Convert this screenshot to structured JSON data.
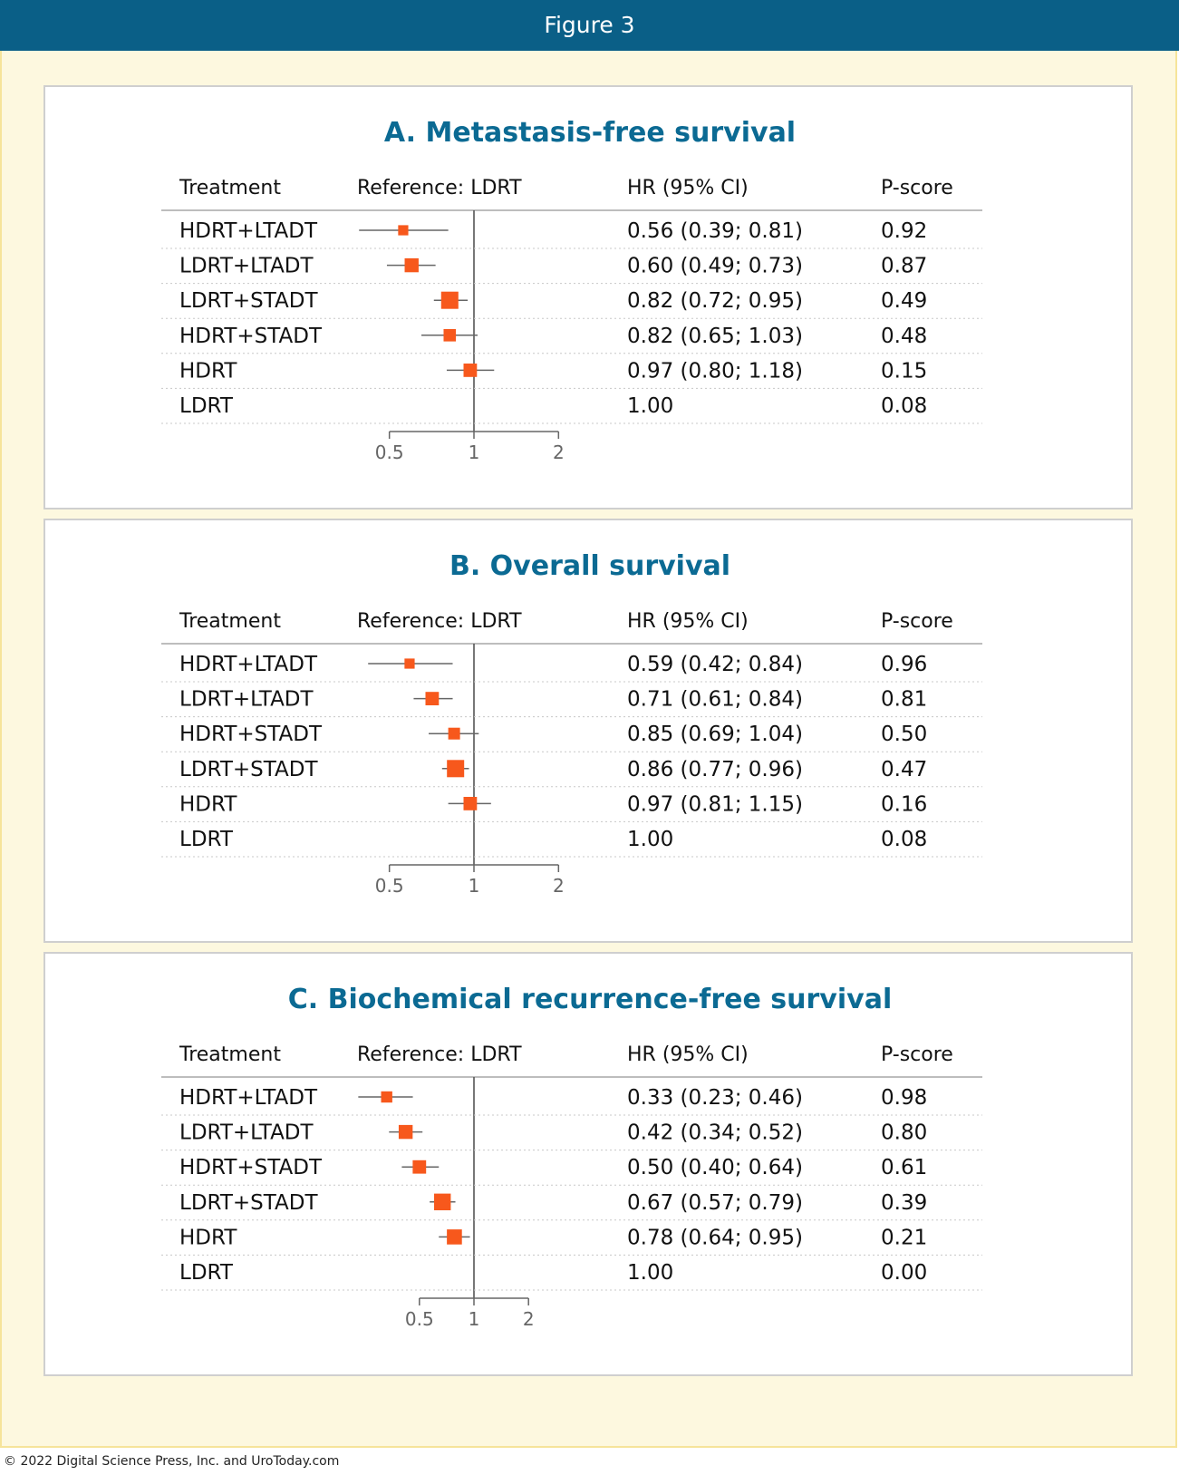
{
  "header": {
    "title": "Figure 3"
  },
  "columns": {
    "treatment": "Treatment",
    "reference": "Reference: LDRT",
    "hr": "HR (95% CI)",
    "pscore": "P-score"
  },
  "colors": {
    "accent": "#0a5f87",
    "marker": "#f7581c",
    "title": "#0b6a93"
  },
  "chart_data": [
    {
      "type": "forest",
      "title": "A. Metastasis-free survival",
      "x_scale": "log",
      "xlim": [
        0.5,
        2
      ],
      "ticks": [
        "0.5",
        "1",
        "2"
      ],
      "reference_line": 1,
      "rows": [
        {
          "label": "HDRT+LTADT",
          "hr": 0.56,
          "lo": 0.39,
          "hi": 0.81,
          "hr_text": "0.56 (0.39; 0.81)",
          "pscore": "0.92",
          "weight": 0.35
        },
        {
          "label": "LDRT+LTADT",
          "hr": 0.6,
          "lo": 0.49,
          "hi": 0.73,
          "hr_text": "0.60 (0.49; 0.73)",
          "pscore": "0.87",
          "weight": 0.7
        },
        {
          "label": "LDRT+STADT",
          "hr": 0.82,
          "lo": 0.72,
          "hi": 0.95,
          "hr_text": "0.82 (0.72; 0.95)",
          "pscore": "0.49",
          "weight": 1.0
        },
        {
          "label": "HDRT+STADT",
          "hr": 0.82,
          "lo": 0.65,
          "hi": 1.03,
          "hr_text": "0.82 (0.65; 1.03)",
          "pscore": "0.48",
          "weight": 0.55
        },
        {
          "label": "HDRT",
          "hr": 0.97,
          "lo": 0.8,
          "hi": 1.18,
          "hr_text": "0.97 (0.80; 1.18)",
          "pscore": "0.15",
          "weight": 0.65
        },
        {
          "label": "LDRT",
          "hr": 1.0,
          "lo": null,
          "hi": null,
          "hr_text": "1.00",
          "pscore": "0.08",
          "weight": 0
        }
      ]
    },
    {
      "type": "forest",
      "title": "B. Overall survival",
      "x_scale": "log",
      "xlim": [
        0.5,
        2
      ],
      "ticks": [
        "0.5",
        "1",
        "2"
      ],
      "reference_line": 1,
      "rows": [
        {
          "label": "HDRT+LTADT",
          "hr": 0.59,
          "lo": 0.42,
          "hi": 0.84,
          "hr_text": "0.59 (0.42; 0.84)",
          "pscore": "0.96",
          "weight": 0.35
        },
        {
          "label": "LDRT+LTADT",
          "hr": 0.71,
          "lo": 0.61,
          "hi": 0.84,
          "hr_text": "0.71 (0.61; 0.84)",
          "pscore": "0.81",
          "weight": 0.65
        },
        {
          "label": "HDRT+STADT",
          "hr": 0.85,
          "lo": 0.69,
          "hi": 1.04,
          "hr_text": "0.85 (0.69; 1.04)",
          "pscore": "0.50",
          "weight": 0.5
        },
        {
          "label": "LDRT+STADT",
          "hr": 0.86,
          "lo": 0.77,
          "hi": 0.96,
          "hr_text": "0.86 (0.77; 0.96)",
          "pscore": "0.47",
          "weight": 1.0
        },
        {
          "label": "HDRT",
          "hr": 0.97,
          "lo": 0.81,
          "hi": 1.15,
          "hr_text": "0.97 (0.81; 1.15)",
          "pscore": "0.16",
          "weight": 0.65
        },
        {
          "label": "LDRT",
          "hr": 1.0,
          "lo": null,
          "hi": null,
          "hr_text": "1.00",
          "pscore": "0.08",
          "weight": 0
        }
      ]
    },
    {
      "type": "forest",
      "title": "C. Biochemical recurrence-free survival",
      "x_scale": "log",
      "xlim": [
        0.4,
        2
      ],
      "ticks": [
        "0.5",
        "1",
        "2"
      ],
      "reference_line": 1,
      "rows": [
        {
          "label": "HDRT+LTADT",
          "hr": 0.33,
          "lo": 0.23,
          "hi": 0.46,
          "hr_text": "0.33 (0.23; 0.46)",
          "pscore": "0.98",
          "weight": 0.45
        },
        {
          "label": "LDRT+LTADT",
          "hr": 0.42,
          "lo": 0.34,
          "hi": 0.52,
          "hr_text": "0.42 (0.34; 0.52)",
          "pscore": "0.80",
          "weight": 0.7
        },
        {
          "label": "HDRT+STADT",
          "hr": 0.5,
          "lo": 0.4,
          "hi": 0.64,
          "hr_text": "0.50 (0.40; 0.64)",
          "pscore": "0.61",
          "weight": 0.65
        },
        {
          "label": "LDRT+STADT",
          "hr": 0.67,
          "lo": 0.57,
          "hi": 0.79,
          "hr_text": "0.67 (0.57; 0.79)",
          "pscore": "0.39",
          "weight": 0.95
        },
        {
          "label": "HDRT",
          "hr": 0.78,
          "lo": 0.64,
          "hi": 0.95,
          "hr_text": "0.78 (0.64; 0.95)",
          "pscore": "0.21",
          "weight": 0.8
        },
        {
          "label": "LDRT",
          "hr": 1.0,
          "lo": null,
          "hi": null,
          "hr_text": "1.00",
          "pscore": "0.00",
          "weight": 0
        }
      ]
    }
  ],
  "footer": {
    "copyright": "© 2022 Digital Science Press, Inc. and UroToday.com"
  }
}
